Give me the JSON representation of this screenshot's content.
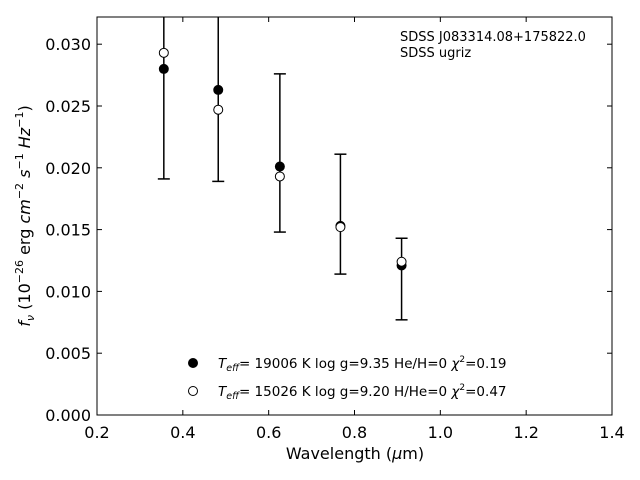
{
  "chart_data": {
    "type": "scatter",
    "title": "",
    "xlabel": "Wavelength (μm)",
    "ylabel": "f_ν (10^-26 erg cm^-2 s^-1 Hz^-1)",
    "xlim": [
      0.2,
      1.4
    ],
    "ylim": [
      0.0,
      0.0322
    ],
    "xticks": [
      "0.2",
      "0.4",
      "0.6",
      "0.8",
      "1.0",
      "1.2",
      "1.4"
    ],
    "yticks": [
      "0.000",
      "0.005",
      "0.010",
      "0.015",
      "0.020",
      "0.025",
      "0.030"
    ],
    "annotations": [
      "SDSS J083314.08+175822.0",
      "SDSS ugriz"
    ],
    "observed": {
      "x": [
        0.3557,
        0.4825,
        0.6261,
        0.7672,
        0.9097
      ],
      "y": [
        0.0293,
        0.0247,
        0.0193,
        0.0152,
        0.0124
      ],
      "err_low": [
        0.0102,
        0.0058,
        0.0045,
        0.0038,
        0.0047
      ],
      "err_high": [
        0.0102,
        0.0078,
        0.0083,
        0.0059,
        0.0019
      ]
    },
    "series": [
      {
        "name": "Teff= 19006 K  log g=9.35  He/H=0  χ2=0.19",
        "marker": "filled-circle",
        "x": [
          0.3557,
          0.4825,
          0.6261,
          0.7672,
          0.9097
        ],
        "y": [
          0.028,
          0.0263,
          0.0201,
          0.0153,
          0.0121
        ]
      },
      {
        "name": "Teff= 15026 K  log g=9.20  H/He=0  χ2=0.47",
        "marker": "open-circle",
        "x": [
          0.3557,
          0.4825,
          0.6261,
          0.7672,
          0.9097
        ],
        "y": [
          0.0293,
          0.0247,
          0.0193,
          0.0152,
          0.0124
        ]
      }
    ],
    "legend": {
      "placement": "lower-center",
      "entries": [
        {
          "teff": "= 19006 K  log g=9.35  He/H=0  ",
          "chi": "=0.19"
        },
        {
          "teff": "= 15026 K  log g=9.20  H/He=0  ",
          "chi": "=0.47"
        }
      ]
    },
    "grid": false
  },
  "colors": {
    "axis": "#000000",
    "marker_fill": "#000000",
    "open_marker_fill": "#ffffff",
    "background": "#ffffff"
  }
}
